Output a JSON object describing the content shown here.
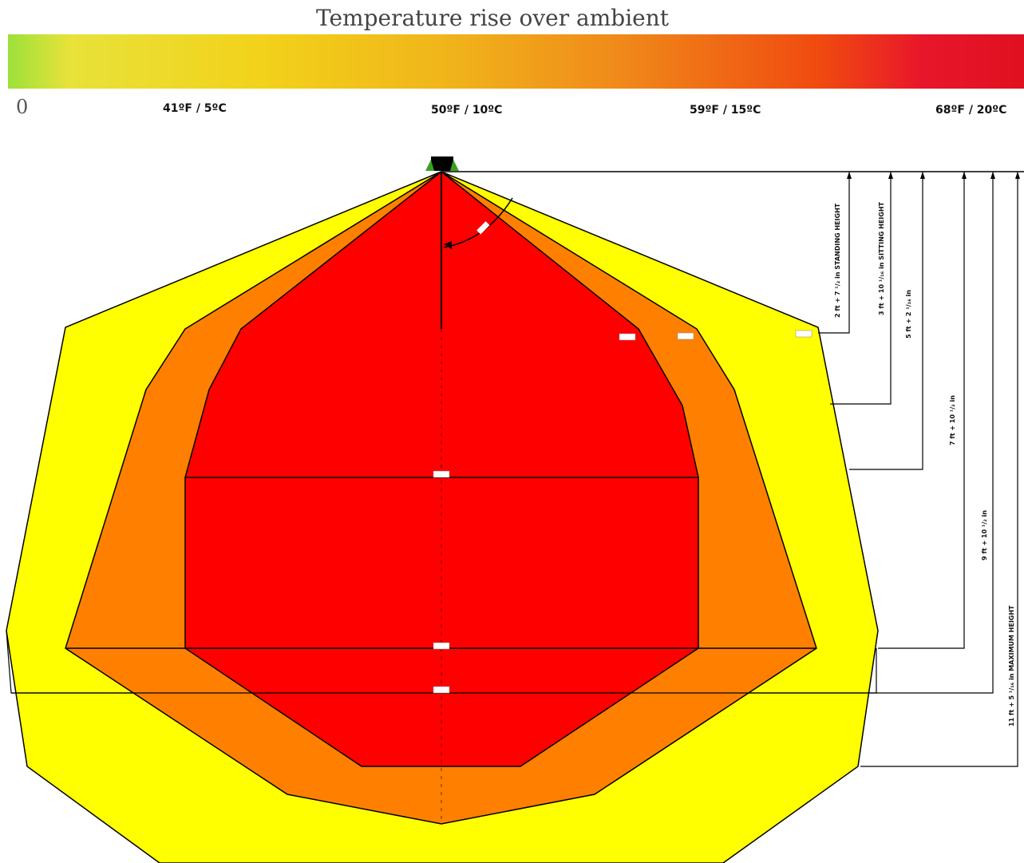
{
  "title": "Temperature rise over ambient",
  "scale": {
    "ticks": [
      "0",
      "41ºF / 5ºC",
      "50ºF / 10ºC",
      "59ºF / 15ºC",
      "68ºF / 20ºC"
    ],
    "colors": [
      "#9be13a",
      "#f2d21a",
      "#f08a1a",
      "#e01020"
    ]
  },
  "zones": [
    {
      "color": "#ffff00"
    },
    {
      "color": "#ff8000"
    },
    {
      "color": "#ff0000"
    }
  ],
  "dimensions": [
    "2 ft + 7 ¹/₂ in STANDING HEIGHT",
    "3 ft + 10 ¹/₁₆ in SITTING HEIGHT",
    "5 ft + 2 ¹/₁₆ in",
    "7 ft + 10 ¹/₂ in",
    "9 ft + 10 ¹/₂ in",
    "11 ft + 5 ¹/₁₆ in MAXIMUM HEIGHT"
  ]
}
